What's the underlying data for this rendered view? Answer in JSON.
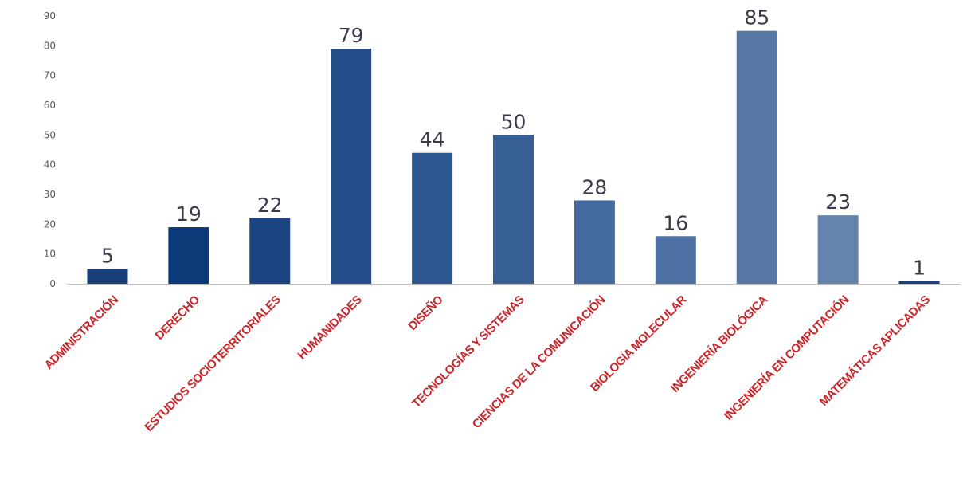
{
  "chart_data": {
    "type": "bar",
    "title": "",
    "xlabel": "",
    "ylabel": "",
    "ylim": [
      0,
      90
    ],
    "yticks": [
      0,
      10,
      20,
      30,
      40,
      50,
      60,
      70,
      80,
      90
    ],
    "grid": false,
    "legend": "none",
    "categories": [
      "ADMINISTRACIÓN",
      "DERECHO",
      "ESTUDIOS SOCIOTERRITORIALES",
      "HUMANIDADES",
      "DISEÑO",
      "TECNOLOGÍAS Y SISTEMAS",
      "CIENCIAS DE LA COMUNICACIÓN",
      "BIOLOGÍA MOLECULAR",
      "INGENIERÍA BIOLÓGICA",
      "INGENIERÍA EN COMPUTACIÓN",
      "MATEMÁTICAS APLICADAS"
    ],
    "values": [
      5,
      19,
      22,
      79,
      44,
      50,
      28,
      16,
      85,
      23,
      1
    ],
    "data_labels": [
      "5",
      "19",
      "22",
      "79",
      "44",
      "50",
      "28",
      "16",
      "85",
      "23",
      "1"
    ],
    "colors": {
      "bars": [
        "#183f78",
        "#0b3a78",
        "#1b4682",
        "#234d88",
        "#2c568f",
        "#365f96",
        "#43699f",
        "#4c70a3",
        "#5677a3",
        "#6484ad",
        "#183f78"
      ],
      "category_labels": "#c8262a",
      "value_labels": "#3a3a4a",
      "axis": "#bfbfbf",
      "tick_labels": "#595959"
    }
  }
}
